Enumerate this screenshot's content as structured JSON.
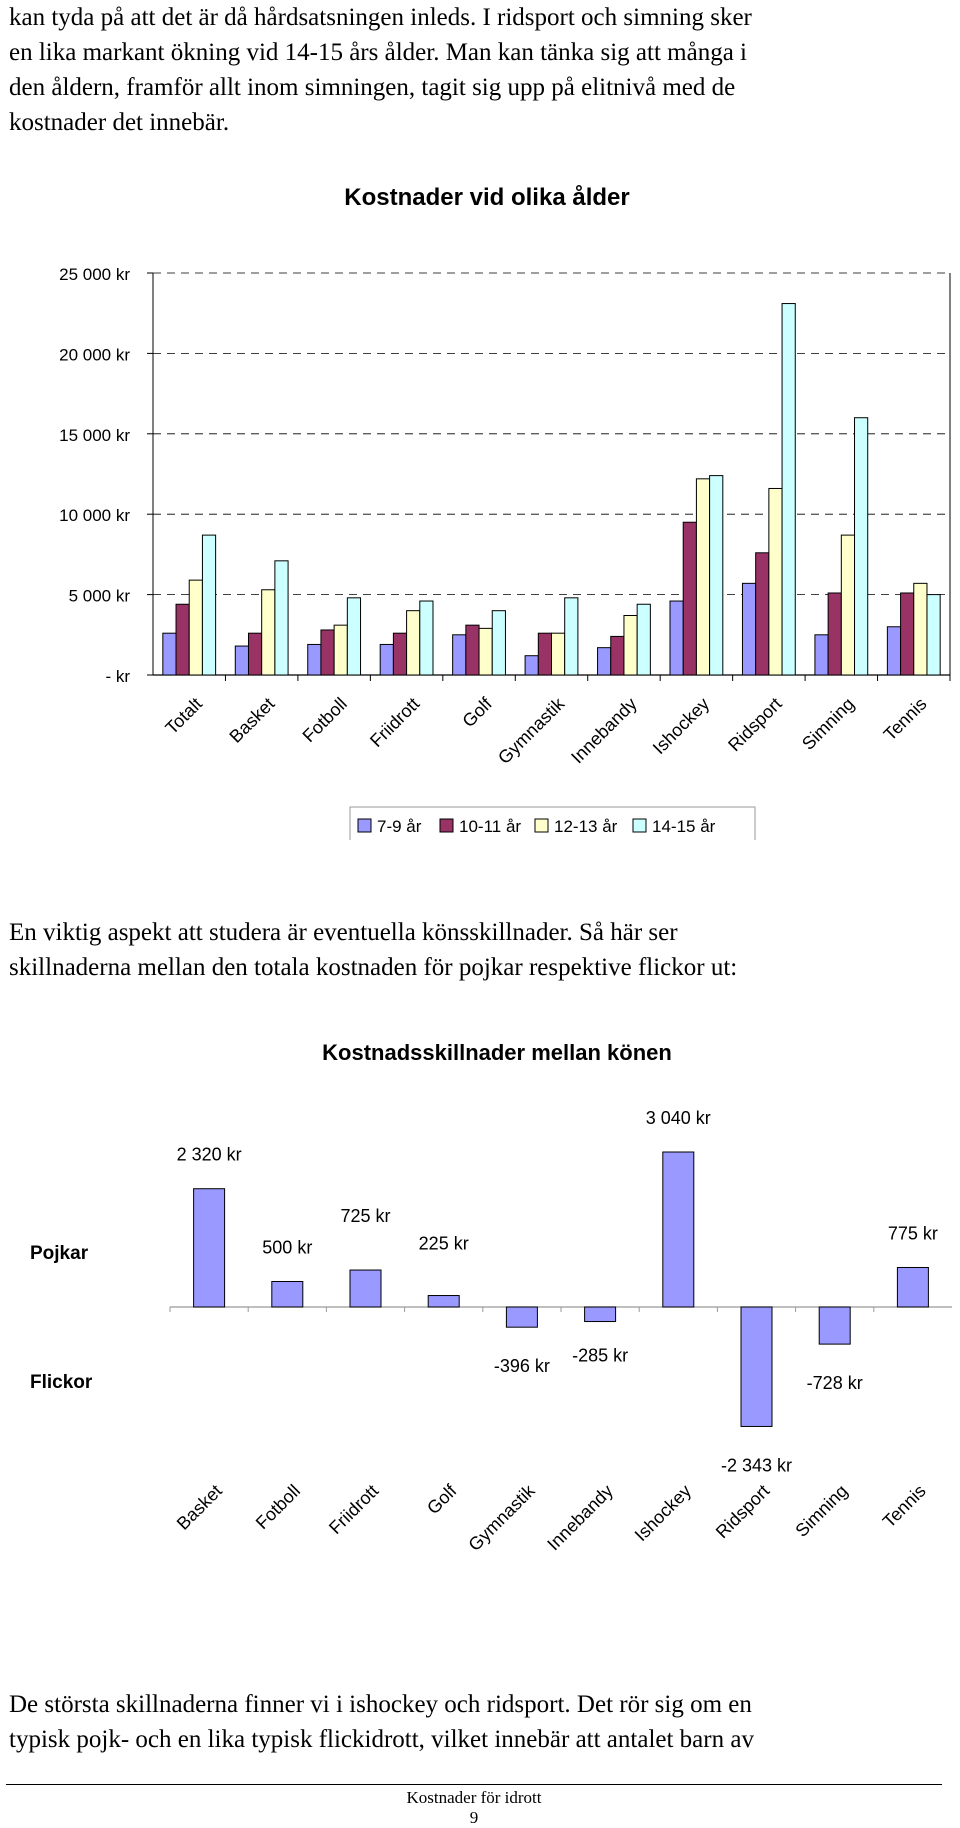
{
  "text": {
    "para_top": [
      "kan tyda på att det är då hårdsatsningen inleds. I ridsport och simning sker",
      "en lika markant ökning vid 14-15 års ålder. Man kan tänka sig att många i",
      "den åldern, framför allt inom simningen, tagit sig upp på elitnivå med de",
      "kostnader det innebär."
    ],
    "para_mid": [
      "En viktig aspekt att studera är eventuella könsskillnader. Så här ser",
      "skillnaderna mellan den totala kostnaden för pojkar respektive flickor ut:"
    ],
    "para_bottom": [
      "De största skillnaderna finner vi i ishockey och ridsport. Det rör sig om en",
      "typisk pojk- och en lika typisk flickidrott, vilket innebär att antalet barn av"
    ],
    "footer": {
      "title": "Kostnader för idrott",
      "page": "9"
    }
  },
  "chart_data": [
    {
      "type": "bar",
      "title": "Kostnader vid olika ålder",
      "categories": [
        "Totalt",
        "Basket",
        "Fotboll",
        "Friidrott",
        "Golf",
        "Gymnastik",
        "Innebandy",
        "Ishockey",
        "Ridsport",
        "Simning",
        "Tennis"
      ],
      "series": [
        {
          "name": "7-9 år",
          "color": "#9999ff",
          "values": [
            2600,
            1800,
            1900,
            1900,
            2500,
            1200,
            1700,
            4600,
            5700,
            2500,
            3000
          ]
        },
        {
          "name": "10-11 år",
          "color": "#993366",
          "values": [
            4400,
            2600,
            2800,
            2600,
            3100,
            2600,
            2400,
            9500,
            7600,
            5100,
            5100
          ]
        },
        {
          "name": "12-13 år",
          "color": "#ffffcc",
          "values": [
            5900,
            5300,
            3100,
            4000,
            2900,
            2600,
            3700,
            12200,
            11600,
            8700,
            5700
          ]
        },
        {
          "name": "14-15 år",
          "color": "#ccffff",
          "values": [
            8700,
            7100,
            4800,
            4600,
            4000,
            4800,
            4400,
            12400,
            23100,
            16000,
            5000
          ]
        }
      ],
      "yticks": [
        "- kr",
        "5 000 kr",
        "10 000 kr",
        "15 000 kr",
        "20 000 kr",
        "25 000 kr"
      ],
      "ylim": [
        0,
        25000
      ],
      "grid": true,
      "legend": "bottom"
    },
    {
      "type": "bar",
      "title": "Kostnadsskillnader mellan könen",
      "categories": [
        "Basket",
        "Fotboll",
        "Friidrott",
        "Golf",
        "Gymnastik",
        "Innebandy",
        "Ishockey",
        "Ridsport",
        "Simning",
        "Tennis"
      ],
      "values": [
        2320,
        500,
        725,
        225,
        -396,
        -285,
        3040,
        -2343,
        -728,
        775
      ],
      "labels": [
        "2 320 kr",
        "500 kr",
        "725 kr",
        "225 kr",
        "-396 kr",
        "-285 kr",
        "3 040 kr",
        "-2 343 kr",
        "-728 kr",
        "775 kr"
      ],
      "group_labels": {
        "positive": "Pojkar",
        "negative": "Flickor"
      },
      "color": "#9999ff"
    }
  ]
}
